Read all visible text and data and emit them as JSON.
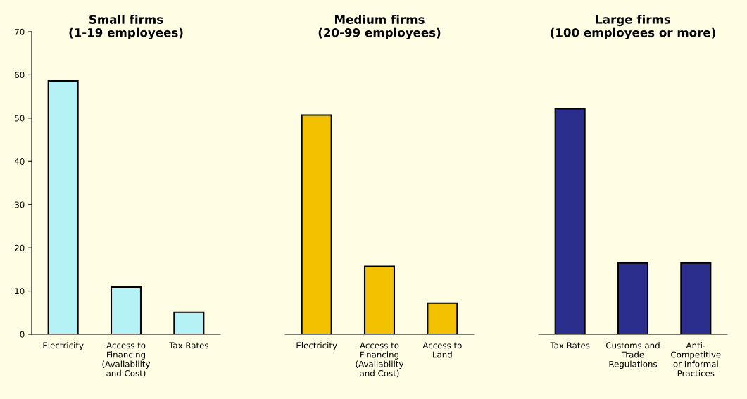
{
  "chart_data": [
    {
      "type": "bar",
      "title": "Small firms\n(1-19 employees)",
      "categories": [
        "Electricity",
        "Access to\nFinancing\n(Availability\nand Cost)",
        "Tax Rates"
      ],
      "values": [
        58.6,
        10.9,
        5.1
      ],
      "colors": [
        "#b4f2f6",
        "#b4f2f6",
        "#b4f2f6"
      ],
      "ylim": [
        0,
        70
      ],
      "yticks": [
        0,
        10,
        20,
        30,
        40,
        50,
        60,
        70
      ],
      "grid": false,
      "legend": false
    },
    {
      "type": "bar",
      "title": "Medium firms\n(20-99 employees)",
      "categories": [
        "Electricity",
        "Access to\nFinancing\n(Availability\nand Cost)",
        "Access to\nLand"
      ],
      "values": [
        50.7,
        15.7,
        7.2
      ],
      "colors": [
        "#f2c200",
        "#f2c200",
        "#f2c200"
      ],
      "ylim": [
        0,
        70
      ],
      "tick_labels": "x",
      "grid": false,
      "legend": false
    },
    {
      "type": "bar",
      "title": "Large firms\n(100 employees or more)",
      "categories": [
        "Tax Rates",
        "Customs and\nTrade\nRegulations",
        "Anti-\nCompetitive\nor Informal\nPractices"
      ],
      "values": [
        52.2,
        16.5,
        16.5
      ],
      "colors": [
        "#2c2e8e",
        "#2c2e8e",
        "#2c2e8e"
      ],
      "ylim": [
        0,
        70
      ],
      "tick_labels": "x",
      "grid": false,
      "legend": false
    }
  ]
}
